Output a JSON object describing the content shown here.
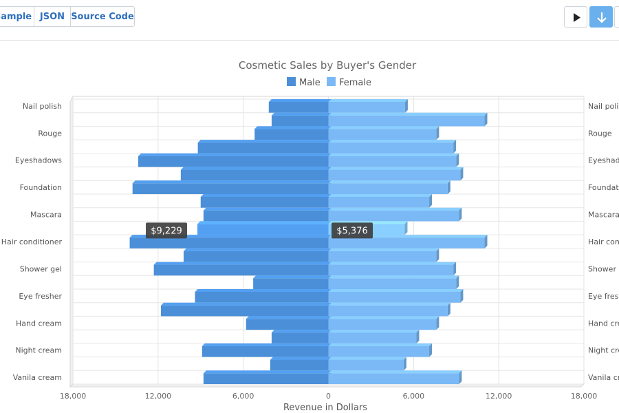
{
  "toolbar": {
    "sample_label": "Sample",
    "json_label": "JSON",
    "source_label": "Source Code",
    "play_icon": "play-icon",
    "download_icon": "arrow-down-icon"
  },
  "colors": {
    "male": "#4a8fd8",
    "female": "#7ab9f5",
    "tooltip_bg": "#3f3f3f",
    "download_button": "#69b0ec"
  },
  "chart_data": {
    "type": "bar",
    "orientation": "horizontal",
    "title": "Cosmetic Sales by Buyer's Gender",
    "xlabel": "Revenue in Dollars",
    "ylabel": "",
    "xlim": [
      -18000,
      18000
    ],
    "xticks": [
      "18,000",
      "12,000",
      "6,000",
      "0",
      "6,000",
      "12,000",
      "18,000"
    ],
    "grid": true,
    "legend_position": "top",
    "categories": [
      "Nail polish",
      "",
      "Rouge",
      "",
      "Eyeshadows",
      "",
      "Foundation",
      "",
      "Mascara",
      "",
      "Hair conditioner",
      "",
      "Shower gel",
      "",
      "Eye fresher",
      "",
      "Hand cream",
      "",
      "Night cream",
      "",
      "Vanila cream"
    ],
    "series": [
      {
        "name": "Male",
        "values": [
          -4200,
          -4000,
          -5200,
          -9200,
          -13400,
          -10400,
          -13800,
          -9000,
          -8800,
          -9229,
          -14000,
          -10200,
          -12300,
          -5300,
          -9400,
          -11800,
          -5800,
          -4000,
          -8900,
          -4100,
          -8800
        ]
      },
      {
        "name": "Female",
        "values": [
          5400,
          11000,
          7600,
          8800,
          9000,
          9300,
          8400,
          7100,
          9200,
          5376,
          11000,
          7600,
          8800,
          9000,
          9300,
          8400,
          7600,
          6200,
          7100,
          5300,
          9200
        ]
      }
    ],
    "tooltips": [
      {
        "series": "Male",
        "category_index": 9,
        "text": "$9,229"
      },
      {
        "series": "Female",
        "category_index": 9,
        "text": "$5,376"
      }
    ]
  }
}
